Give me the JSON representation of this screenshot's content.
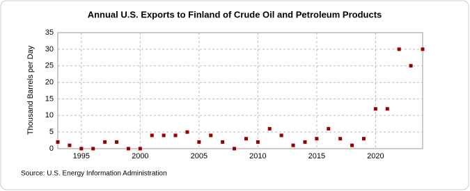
{
  "chart_data": {
    "type": "scatter",
    "title": "Annual U.S. Exports to Finland of Crude Oil and Petroleum Products",
    "y_label": "Thousand Barrels per Day",
    "source": "Source: U.S. Energy Information Administration",
    "x": [
      1993,
      1994,
      1995,
      1996,
      1997,
      1998,
      1999,
      2000,
      2001,
      2002,
      2003,
      2004,
      2005,
      2006,
      2007,
      2008,
      2009,
      2010,
      2011,
      2012,
      2013,
      2014,
      2015,
      2016,
      2017,
      2018,
      2019,
      2020,
      2021,
      2022,
      2023,
      2024
    ],
    "values": [
      2,
      1,
      0,
      0,
      2,
      2,
      0,
      0,
      4,
      4,
      4,
      5,
      2,
      4,
      2,
      0,
      3,
      2,
      6,
      4,
      1,
      2,
      3,
      6,
      3,
      1,
      3,
      12,
      12,
      30,
      25,
      30
    ],
    "color": "#990000",
    "xlim": [
      1993,
      2024
    ],
    "xticks": [
      1995,
      2000,
      2005,
      2010,
      2015,
      2020
    ],
    "ylim": [
      0,
      35
    ],
    "yticks": [
      0,
      5,
      10,
      15,
      20,
      25,
      30,
      35
    ],
    "grid": true
  }
}
